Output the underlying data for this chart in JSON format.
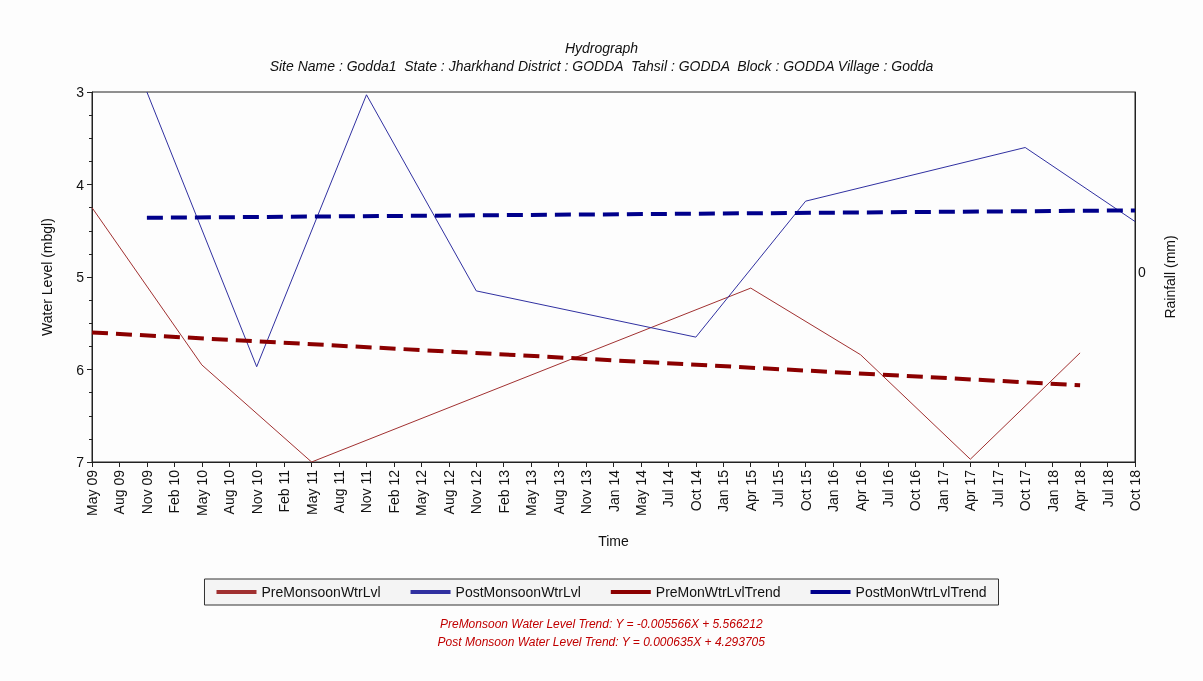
{
  "chart_data": {
    "type": "line",
    "title": "Hydrograph",
    "subtitle": "Site Name : Godda1  State : Jharkhand District : GODDA  Tahsil : GODDA  Block : GODDA Village : Godda",
    "xlabel": "Time",
    "ylabel": "Water Level (mbgl)",
    "y2label": "Rainfall (mm)",
    "categories": [
      "May 09",
      "Aug 09",
      "Nov 09",
      "Feb 10",
      "May 10",
      "Aug 10",
      "Nov 10",
      "Feb 11",
      "May 11",
      "Aug 11",
      "Nov 11",
      "Feb 12",
      "May 12",
      "Aug 12",
      "Nov 12",
      "Feb 13",
      "May 13",
      "Aug 13",
      "Nov 13",
      "Jan 14",
      "May 14",
      "Jul 14",
      "Oct 14",
      "Jan 15",
      "Apr 15",
      "Jul 15",
      "Oct 15",
      "Jan 16",
      "Apr 16",
      "Jul 16",
      "Oct 16",
      "Jan 17",
      "Apr 17",
      "Jul 17",
      "Oct 17",
      "Jan 18",
      "Apr 18",
      "Jul 18",
      "Oct 18"
    ],
    "series": [
      {
        "name": "PreMonsoonWtrLvl",
        "color": "#a03030",
        "line_style": "solid",
        "x": [
          "May 09",
          "May 10",
          "May 11",
          "Apr 15",
          "Apr 16",
          "Apr 17",
          "Apr 18"
        ],
        "values": [
          4.25,
          5.95,
          7.0,
          5.12,
          5.84,
          6.97,
          5.82
        ]
      },
      {
        "name": "PostMonsoonWtrLvl",
        "color": "#3030a0",
        "line_style": "solid",
        "x": [
          "Nov 09",
          "Nov 10",
          "Nov 11",
          "Nov 12",
          "Oct 14",
          "Oct 15",
          "Oct 17",
          "Oct 18"
        ],
        "values": [
          3.0,
          5.97,
          3.03,
          5.15,
          5.65,
          4.18,
          3.6,
          4.4
        ]
      },
      {
        "name": "PreMonWtrLvlTrend",
        "color": "#8b0000",
        "line_style": "dashed",
        "x": [
          "May 09",
          "Apr 18"
        ],
        "values": [
          5.6,
          6.17
        ]
      },
      {
        "name": "PostMonWtrLvlTrend",
        "color": "#00008b",
        "line_style": "dashed",
        "x": [
          "Nov 09",
          "Oct 18"
        ],
        "values": [
          4.36,
          4.28
        ]
      }
    ],
    "ylim": [
      7,
      3
    ],
    "yticks": [
      3,
      4,
      5,
      6,
      7
    ],
    "grid": false,
    "legend": "bottom",
    "marker": "none",
    "annotations": [
      "0",
      "PreMonsoon Water Level Trend: Y = -0.005566X + 5.566212",
      "Post Monsoon Water Level Trend: Y = 0.000635X + 4.293705"
    ]
  }
}
